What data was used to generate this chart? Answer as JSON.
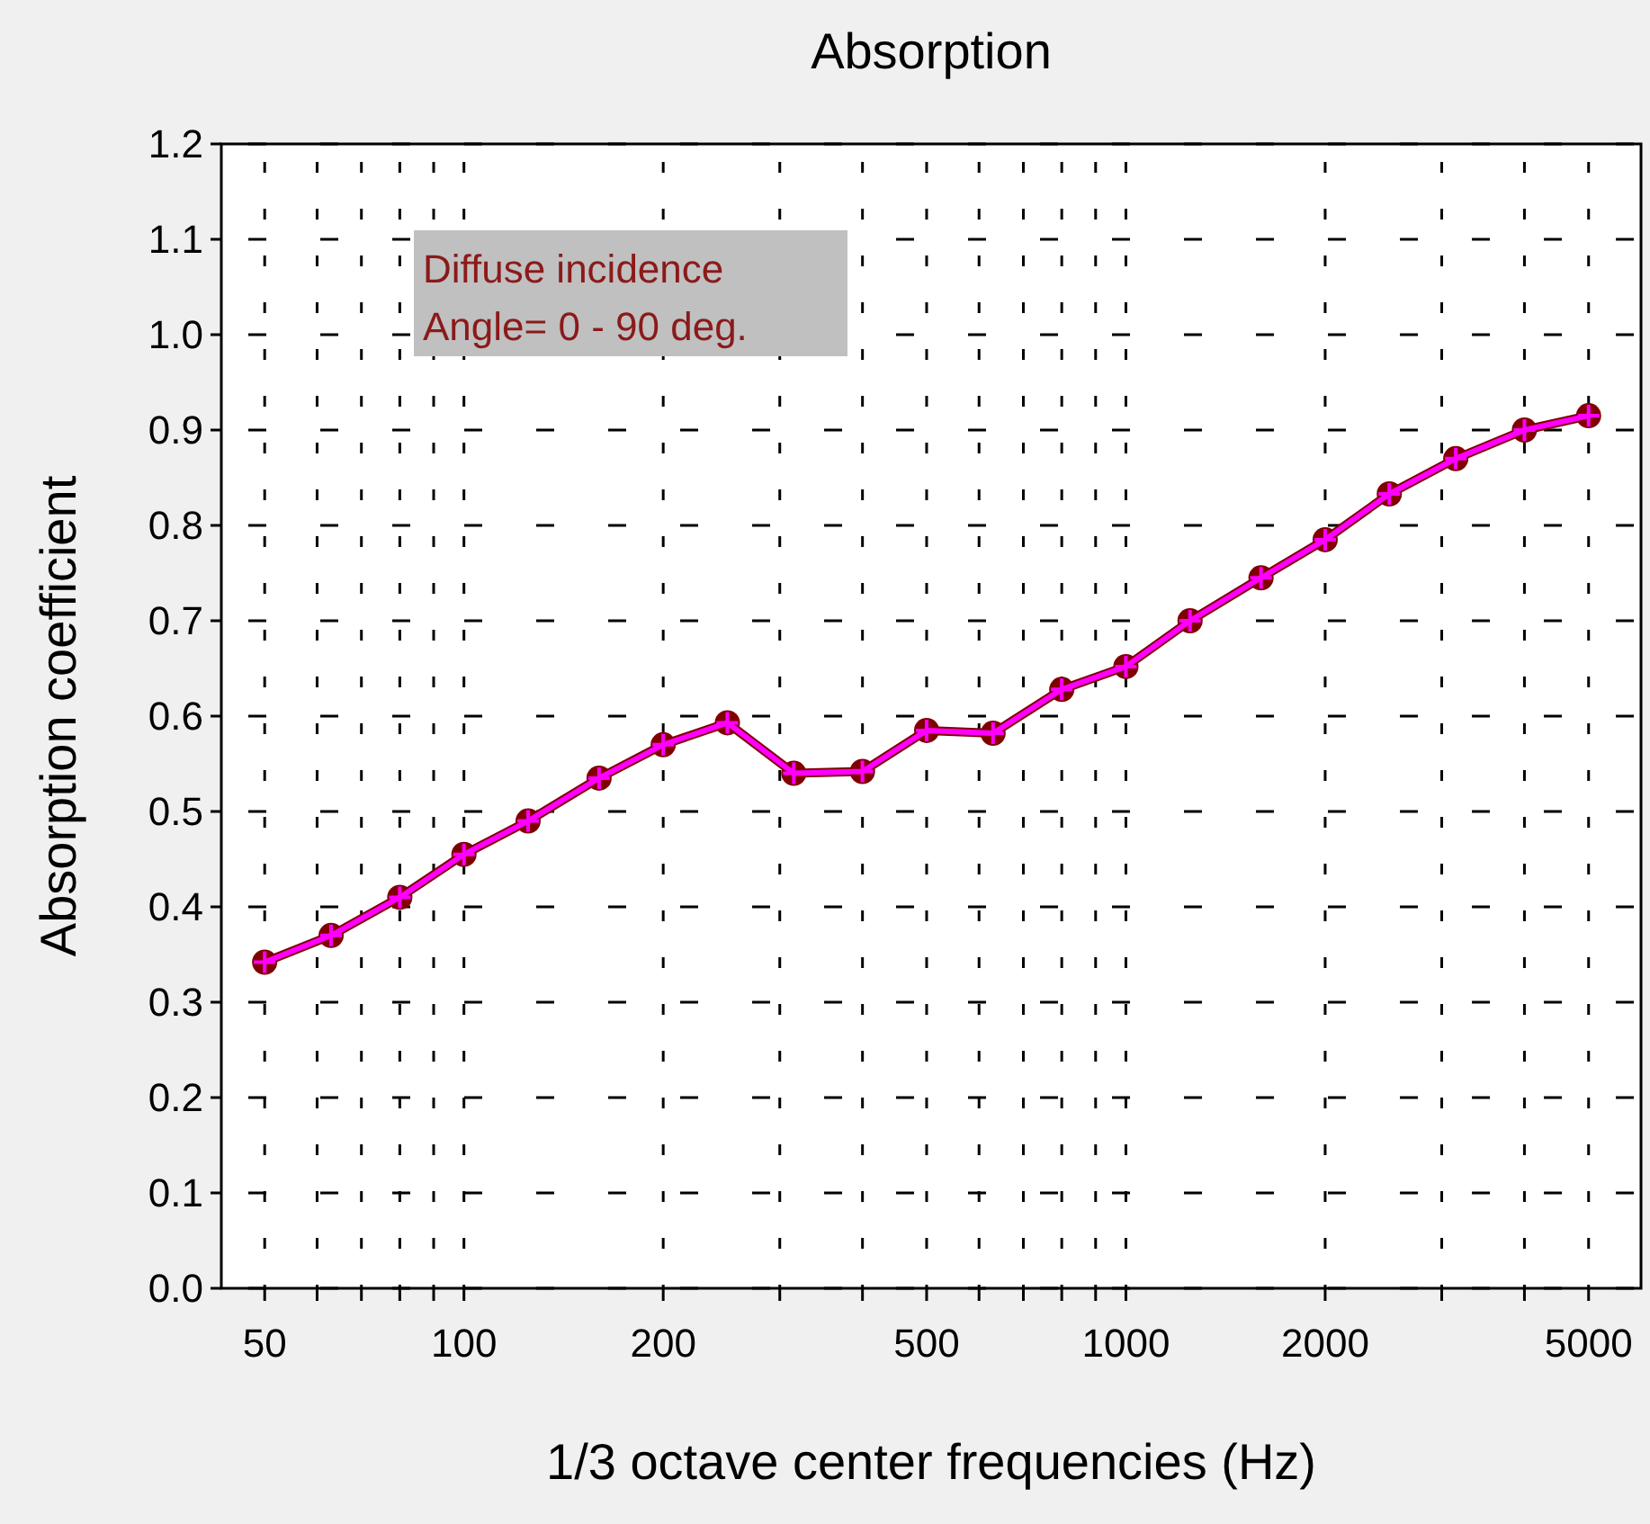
{
  "chart_data": {
    "type": "line",
    "title": "Absorption",
    "xlabel": "1/3 octave center frequencies (Hz)",
    "ylabel": "Absorption coefficient",
    "log": "x",
    "x": [
      50,
      63,
      80,
      100,
      125,
      160,
      200,
      250,
      315,
      400,
      500,
      630,
      800,
      1000,
      1250,
      1600,
      2000,
      2500,
      3150,
      4000,
      5000
    ],
    "series": [
      {
        "color": "#800000",
        "marker": "circle",
        "values": [
          0.342,
          0.37,
          0.41,
          0.455,
          0.49,
          0.535,
          0.57,
          0.593,
          0.54,
          0.542,
          0.585,
          0.582,
          0.628,
          0.652,
          0.7,
          0.745,
          0.785,
          0.833,
          0.87,
          0.9,
          0.915
        ]
      },
      {
        "color": "#ff00ff",
        "marker": "cross",
        "values": [
          0.342,
          0.37,
          0.41,
          0.455,
          0.49,
          0.535,
          0.57,
          0.593,
          0.54,
          0.542,
          0.585,
          0.582,
          0.628,
          0.652,
          0.7,
          0.745,
          0.785,
          0.833,
          0.87,
          0.9,
          0.915
        ]
      }
    ],
    "xlim": [
      43,
      6000
    ],
    "xticks": [
      50,
      {
        "value": 60,
        "label": null
      },
      {
        "value": 70,
        "label": null
      },
      {
        "value": 80,
        "label": null
      },
      {
        "value": 90,
        "label": null
      },
      100,
      200,
      {
        "value": 300,
        "label": null
      },
      {
        "value": 400,
        "label": null
      },
      500,
      {
        "value": 600,
        "label": null
      },
      {
        "value": 700,
        "label": null
      },
      {
        "value": 800,
        "label": null
      },
      {
        "value": 900,
        "label": null
      },
      1000,
      2000,
      {
        "value": 3000,
        "label": null
      },
      {
        "value": 4000,
        "label": null
      },
      5000
    ],
    "ylim": [
      0,
      1.2
    ],
    "yticks": [
      {
        "value": 0,
        "label": "0.0"
      },
      0.1,
      0.2,
      0.3,
      0.4,
      0.5,
      0.6,
      0.7,
      0.8,
      0.9,
      {
        "value": 1,
        "label": "1.0"
      },
      1.1,
      1.2
    ],
    "grid": true,
    "annotations": [
      "Diffuse incidence\nAngle= 0 - 90 deg."
    ]
  }
}
